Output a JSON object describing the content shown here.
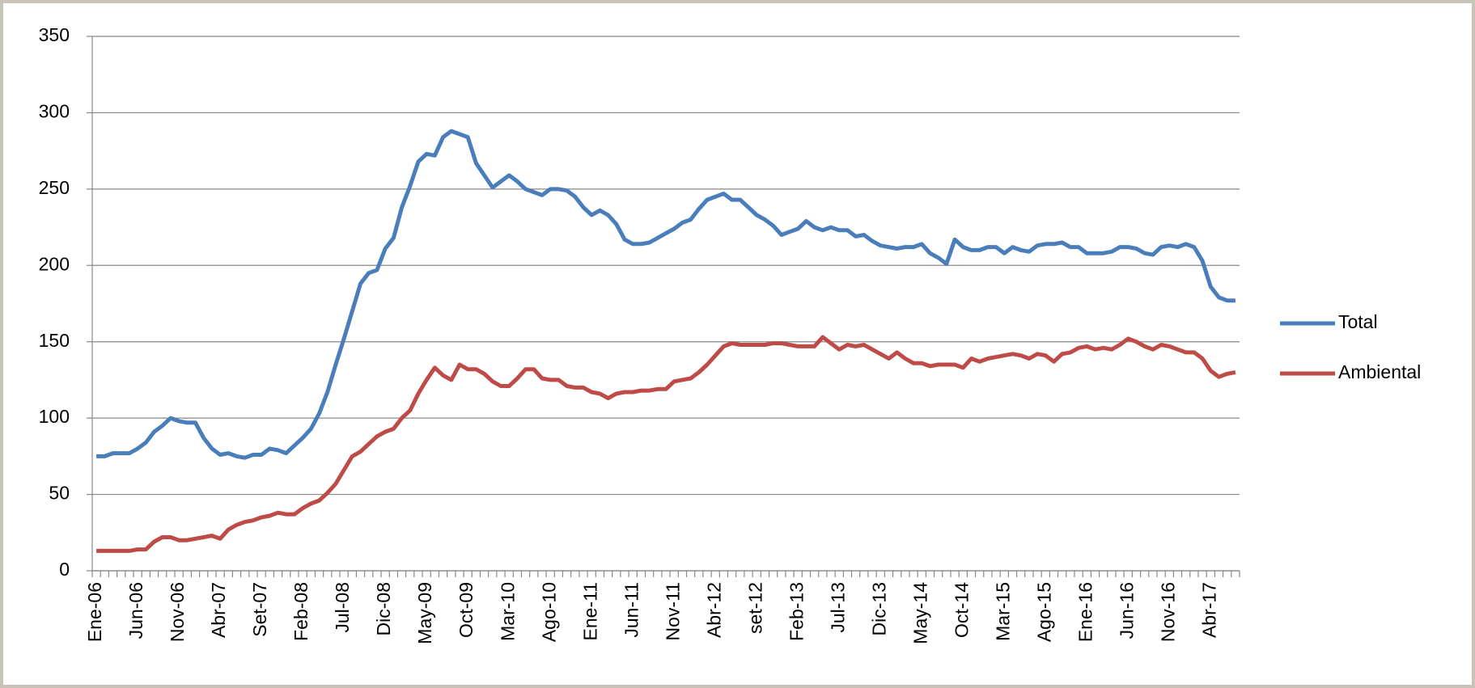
{
  "chart_data": {
    "type": "line",
    "categories": [
      "Ene-06",
      null,
      null,
      null,
      null,
      "Jun-06",
      null,
      null,
      null,
      null,
      "Nov-06",
      null,
      null,
      null,
      null,
      "Abr-07",
      null,
      null,
      null,
      null,
      "Set-07",
      null,
      null,
      null,
      null,
      "Feb-08",
      null,
      null,
      null,
      null,
      "Jul-08",
      null,
      null,
      null,
      null,
      "Dic-08",
      null,
      null,
      null,
      null,
      "May-09",
      null,
      null,
      null,
      null,
      "Oct-09",
      null,
      null,
      null,
      null,
      "Mar-10",
      null,
      null,
      null,
      null,
      "Ago-10",
      null,
      null,
      null,
      null,
      "Ene-11",
      null,
      null,
      null,
      null,
      "Jun-11",
      null,
      null,
      null,
      null,
      "Nov-11",
      null,
      null,
      null,
      null,
      "Abr-12",
      null,
      null,
      null,
      null,
      "set-12",
      null,
      null,
      null,
      null,
      "Feb-13",
      null,
      null,
      null,
      null,
      "Jul-13",
      null,
      null,
      null,
      null,
      "Dic-13",
      null,
      null,
      null,
      null,
      "May-14",
      null,
      null,
      null,
      null,
      "Oct-14",
      null,
      null,
      null,
      null,
      "Mar-15",
      null,
      null,
      null,
      null,
      "Ago-15",
      null,
      null,
      null,
      null,
      "Ene-16",
      null,
      null,
      null,
      null,
      "Jun-16",
      null,
      null,
      null,
      null,
      "Nov-16",
      null,
      null,
      null,
      null,
      "Abr-17",
      null,
      null,
      null
    ],
    "series": [
      {
        "name": "Total",
        "color": "#4a7ebb",
        "values": [
          75,
          75,
          77,
          77,
          77,
          80,
          84,
          91,
          95,
          100,
          98,
          97,
          97,
          87,
          80,
          76,
          77,
          75,
          74,
          76,
          76,
          80,
          79,
          77,
          82,
          87,
          93,
          103,
          117,
          135,
          152,
          170,
          188,
          195,
          197,
          211,
          218,
          238,
          252,
          268,
          273,
          272,
          284,
          288,
          286,
          284,
          267,
          259,
          251,
          255,
          259,
          255,
          250,
          248,
          246,
          250,
          250,
          249,
          245,
          238,
          233,
          236,
          233,
          227,
          217,
          214,
          214,
          215,
          218,
          221,
          224,
          228,
          230,
          237,
          243,
          245,
          247,
          243,
          243,
          238,
          233,
          230,
          226,
          220,
          222,
          224,
          229,
          225,
          223,
          225,
          223,
          223,
          219,
          220,
          216,
          213,
          212,
          211,
          212,
          212,
          214,
          208,
          205,
          201,
          217,
          212,
          210,
          210,
          212,
          212,
          208,
          212,
          210,
          209,
          213,
          214,
          214,
          215,
          212,
          212,
          208,
          208,
          208,
          209,
          212,
          212,
          211,
          208,
          207,
          212,
          213,
          212,
          214,
          212,
          203,
          186,
          179,
          177,
          177
        ]
      },
      {
        "name": "Ambiental",
        "color": "#be4b48",
        "values": [
          13,
          13,
          13,
          13,
          13,
          14,
          14,
          19,
          22,
          22,
          20,
          20,
          21,
          22,
          23,
          21,
          27,
          30,
          32,
          33,
          35,
          36,
          38,
          37,
          37,
          41,
          44,
          46,
          51,
          57,
          66,
          75,
          78,
          83,
          88,
          91,
          93,
          100,
          105,
          116,
          125,
          133,
          128,
          125,
          135,
          132,
          132,
          129,
          124,
          121,
          121,
          126,
          132,
          132,
          126,
          125,
          125,
          121,
          120,
          120,
          117,
          116,
          113,
          116,
          117,
          117,
          118,
          118,
          119,
          119,
          124,
          125,
          126,
          130,
          135,
          141,
          147,
          149,
          148,
          148,
          148,
          148,
          149,
          149,
          148,
          147,
          147,
          147,
          153,
          149,
          145,
          148,
          147,
          148,
          145,
          142,
          139,
          143,
          139,
          136,
          136,
          134,
          135,
          135,
          135,
          133,
          139,
          137,
          139,
          140,
          141,
          142,
          141,
          139,
          142,
          141,
          137,
          142,
          143,
          146,
          147,
          145,
          146,
          145,
          148,
          152,
          150,
          147,
          145,
          148,
          147,
          145,
          143,
          143,
          139,
          131,
          127,
          129,
          130
        ]
      }
    ],
    "ylim": [
      0,
      350
    ],
    "yticks": [
      0,
      50,
      100,
      150,
      200,
      250,
      300,
      350
    ],
    "grid": true,
    "legend": "right"
  }
}
